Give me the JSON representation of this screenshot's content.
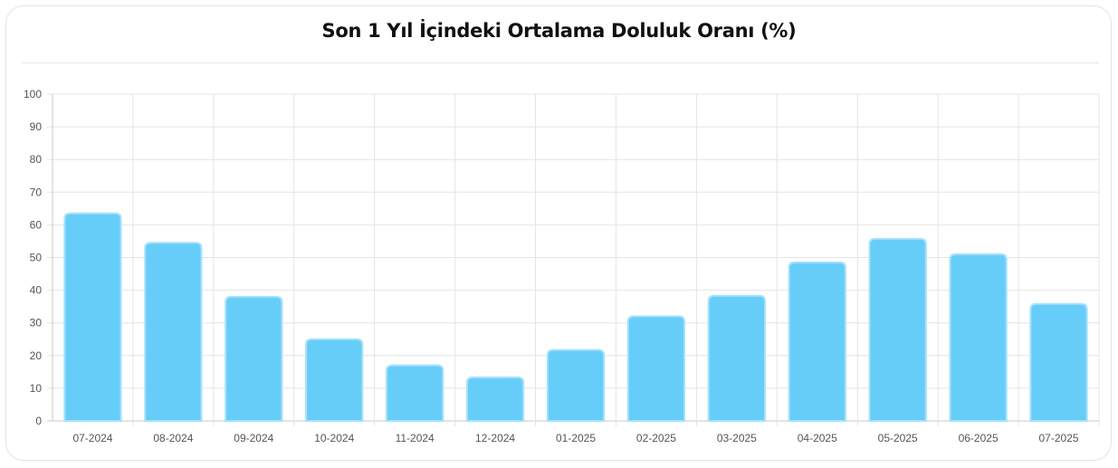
{
  "chart_data": {
    "type": "bar",
    "title": "Son 1 Yıl İçindeki Ortalama Doluluk Oranı (%)",
    "xlabel": "",
    "ylabel": "",
    "categories": [
      "07-2024",
      "08-2024",
      "09-2024",
      "10-2024",
      "11-2024",
      "12-2024",
      "01-2025",
      "02-2025",
      "03-2025",
      "04-2025",
      "05-2025",
      "06-2025",
      "07-2025"
    ],
    "values": [
      63.5,
      54.5,
      38,
      25,
      17,
      13.3,
      21.7,
      32,
      38.3,
      48.5,
      55.7,
      51,
      35.8
    ],
    "ylim": [
      0,
      100
    ],
    "yticks": [
      "0",
      "10",
      "20",
      "30",
      "40",
      "50",
      "60",
      "70",
      "80",
      "90",
      "100"
    ],
    "grid": true,
    "legend": "none",
    "bar_color": "#66cdf9",
    "bar_edge_color": "#a6e1fb"
  }
}
